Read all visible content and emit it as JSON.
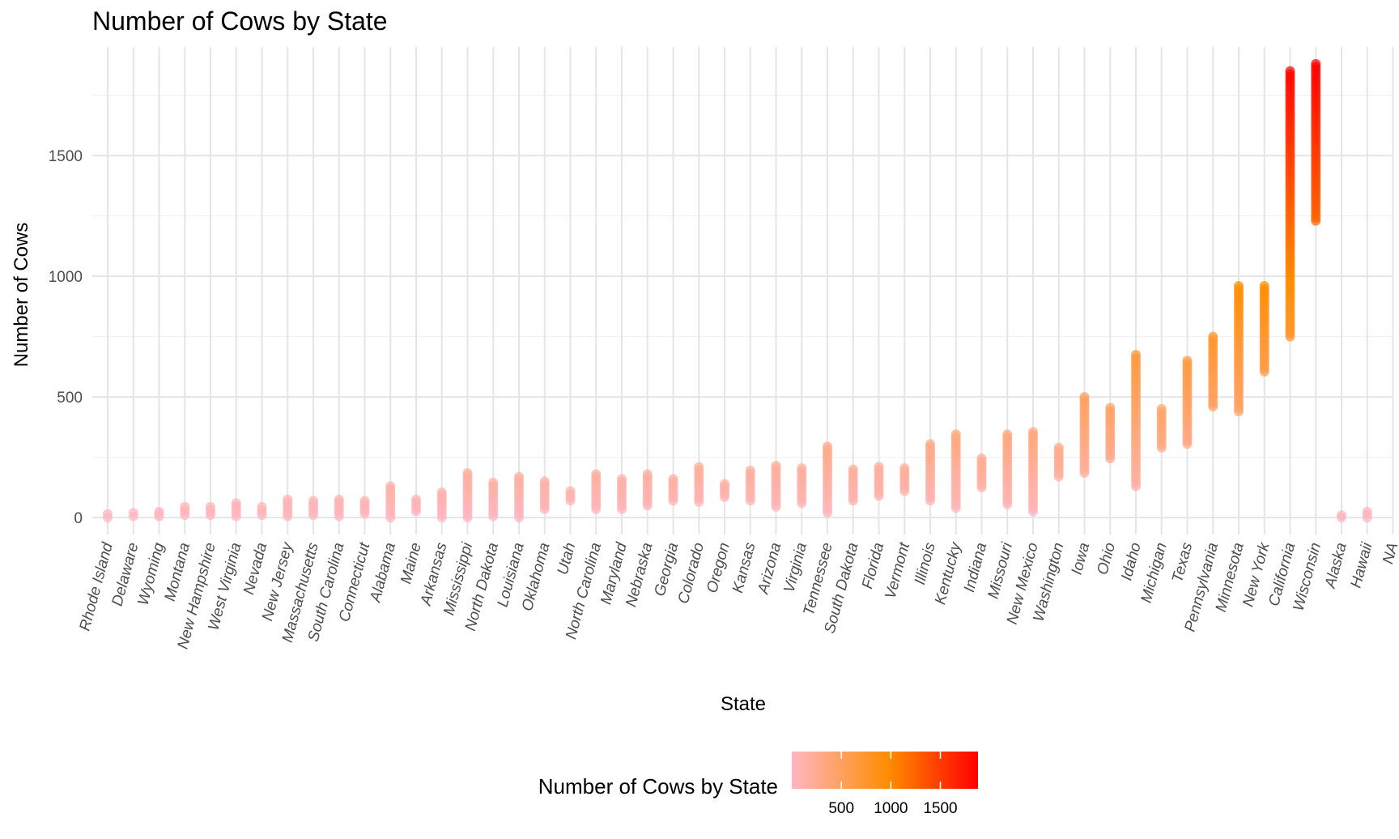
{
  "chart_data": {
    "type": "scatter",
    "title": "Number of Cows by State",
    "xlabel": "State",
    "ylabel": "Number of Cows",
    "ylim": [
      -70,
      1950
    ],
    "yticks": [
      0,
      500,
      1000,
      1500
    ],
    "grid": true,
    "legend": {
      "title": "Number of Cows by State",
      "position": "bottom",
      "type": "colorbar",
      "range": [
        0,
        1880
      ],
      "ticks": [
        500,
        1000,
        1500
      ],
      "colors": [
        "#FFB6C1",
        "#FF8C00",
        "#FF0000"
      ]
    },
    "categories": [
      "Rhode Island",
      "Delaware",
      "Wyoming",
      "Montana",
      "New Hampshire",
      "West Virginia",
      "Nevada",
      "New Jersey",
      "Massachusetts",
      "South Carolina",
      "Connecticut",
      "Alabama",
      "Maine",
      "Arkansas",
      "Mississippi",
      "North Dakota",
      "Louisiana",
      "Oklahoma",
      "Utah",
      "North Carolina",
      "Maryland",
      "Nebraska",
      "Georgia",
      "Colorado",
      "Oregon",
      "Kansas",
      "Arizona",
      "Virginia",
      "Tennessee",
      "South Dakota",
      "Florida",
      "Vermont",
      "Illinois",
      "Kentucky",
      "Indiana",
      "Missouri",
      "New Mexico",
      "Washington",
      "Iowa",
      "Ohio",
      "Idaho",
      "Michigan",
      "Texas",
      "Pennsylvania",
      "Minnesota",
      "New York",
      "California",
      "Wisconsin",
      "Alaska",
      "Hawaii",
      "NA"
    ],
    "series": [
      {
        "values": [
          0,
          15
        ]
      },
      {
        "values": [
          5,
          20
        ]
      },
      {
        "values": [
          5,
          25
        ]
      },
      {
        "values": [
          10,
          45
        ]
      },
      {
        "values": [
          10,
          45
        ]
      },
      {
        "values": [
          5,
          60
        ]
      },
      {
        "values": [
          10,
          45
        ]
      },
      {
        "values": [
          5,
          75
        ]
      },
      {
        "values": [
          10,
          70
        ]
      },
      {
        "values": [
          5,
          75
        ]
      },
      {
        "values": [
          15,
          70
        ]
      },
      {
        "values": [
          0,
          130
        ]
      },
      {
        "values": [
          25,
          75
        ]
      },
      {
        "values": [
          0,
          105
        ]
      },
      {
        "values": [
          0,
          185
        ]
      },
      {
        "values": [
          5,
          145
        ]
      },
      {
        "values": [
          0,
          170
        ]
      },
      {
        "values": [
          35,
          150
        ]
      },
      {
        "values": [
          70,
          110
        ]
      },
      {
        "values": [
          35,
          180
        ]
      },
      {
        "values": [
          35,
          160
        ]
      },
      {
        "values": [
          50,
          180
        ]
      },
      {
        "values": [
          70,
          160
        ]
      },
      {
        "values": [
          65,
          210
        ]
      },
      {
        "values": [
          85,
          140
        ]
      },
      {
        "values": [
          70,
          195
        ]
      },
      {
        "values": [
          45,
          215
        ]
      },
      {
        "values": [
          60,
          205
        ]
      },
      {
        "values": [
          20,
          295
        ]
      },
      {
        "values": [
          70,
          200
        ]
      },
      {
        "values": [
          90,
          210
        ]
      },
      {
        "values": [
          110,
          205
        ]
      },
      {
        "values": [
          70,
          305
        ]
      },
      {
        "values": [
          40,
          345
        ]
      },
      {
        "values": [
          125,
          245
        ]
      },
      {
        "values": [
          55,
          345
        ]
      },
      {
        "values": [
          25,
          355
        ]
      },
      {
        "values": [
          170,
          290
        ]
      },
      {
        "values": [
          185,
          500
        ]
      },
      {
        "values": [
          245,
          455
        ]
      },
      {
        "values": [
          130,
          675
        ]
      },
      {
        "values": [
          290,
          450
        ]
      },
      {
        "values": [
          305,
          650
        ]
      },
      {
        "values": [
          460,
          750
        ]
      },
      {
        "values": [
          440,
          960
        ]
      },
      {
        "values": [
          605,
          960
        ]
      },
      {
        "values": [
          750,
          1850
        ]
      },
      {
        "values": [
          1230,
          1880
        ]
      },
      {
        "values": [
          0,
          10
        ]
      },
      {
        "values": [
          0,
          25
        ]
      },
      {
        "values": []
      }
    ]
  }
}
